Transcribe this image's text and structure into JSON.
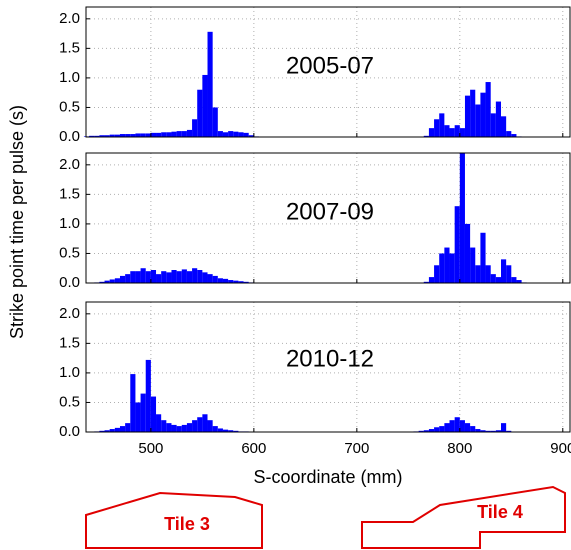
{
  "chart_data": {
    "type": "histogram",
    "xlabel": "S-coordinate (mm)",
    "ylabel": "Strike point time per pulse (s)",
    "bins": [
      435,
      440,
      445,
      450,
      455,
      460,
      465,
      470,
      475,
      480,
      485,
      490,
      495,
      500,
      505,
      510,
      515,
      520,
      525,
      530,
      535,
      540,
      545,
      550,
      555,
      560,
      565,
      570,
      575,
      580,
      585,
      590,
      595,
      600,
      605,
      610,
      615,
      620,
      625,
      630,
      635,
      640,
      645,
      650,
      655,
      660,
      665,
      670,
      675,
      680,
      685,
      690,
      695,
      700,
      705,
      710,
      715,
      720,
      725,
      730,
      735,
      740,
      745,
      750,
      755,
      760,
      765,
      770,
      775,
      780,
      785,
      790,
      795,
      800,
      805,
      810,
      815,
      820,
      825,
      830,
      835,
      840,
      845,
      850,
      855,
      860,
      865,
      870,
      875,
      880,
      885,
      890,
      895,
      900,
      905
    ],
    "series": [
      {
        "name": "2005-07",
        "color": "#0000ff",
        "values": [
          0.01,
          0.02,
          0.02,
          0.03,
          0.03,
          0.04,
          0.04,
          0.05,
          0.05,
          0.05,
          0.06,
          0.06,
          0.06,
          0.07,
          0.07,
          0.08,
          0.08,
          0.09,
          0.1,
          0.1,
          0.12,
          0.3,
          0.8,
          1.05,
          1.78,
          0.5,
          0.1,
          0.08,
          0.1,
          0.09,
          0.08,
          0.07,
          0.03,
          0.01,
          0,
          0,
          0,
          0,
          0,
          0,
          0,
          0,
          0,
          0,
          0,
          0,
          0,
          0,
          0,
          0,
          0,
          0,
          0,
          0,
          0,
          0,
          0,
          0,
          0,
          0,
          0,
          0,
          0,
          0,
          0,
          0,
          0.02,
          0.15,
          0.3,
          0.4,
          0.2,
          0.15,
          0.2,
          0.15,
          0.7,
          0.8,
          0.55,
          0.75,
          0.93,
          0.4,
          0.6,
          0.35,
          0.1,
          0.05,
          0.01,
          0,
          0,
          0,
          0,
          0,
          0,
          0,
          0,
          0
        ]
      },
      {
        "name": "2007-09",
        "color": "#0000ff",
        "values": [
          0,
          0,
          0.01,
          0.02,
          0.04,
          0.06,
          0.08,
          0.12,
          0.15,
          0.2,
          0.2,
          0.25,
          0.2,
          0.22,
          0.15,
          0.2,
          0.18,
          0.22,
          0.2,
          0.23,
          0.2,
          0.25,
          0.22,
          0.18,
          0.15,
          0.12,
          0.08,
          0.07,
          0.05,
          0.04,
          0.03,
          0.02,
          0.01,
          0,
          0,
          0,
          0,
          0,
          0,
          0,
          0,
          0,
          0,
          0,
          0,
          0,
          0,
          0,
          0,
          0,
          0,
          0,
          0,
          0,
          0,
          0,
          0,
          0,
          0,
          0,
          0,
          0,
          0,
          0,
          0,
          0,
          0.02,
          0.1,
          0.3,
          0.5,
          0.6,
          0.5,
          1.3,
          2.2,
          1.0,
          0.6,
          0.3,
          0.85,
          0.3,
          0.15,
          0.1,
          0.4,
          0.3,
          0.1,
          0.05,
          0.01,
          0,
          0,
          0,
          0,
          0,
          0,
          0,
          0
        ]
      },
      {
        "name": "2010-12",
        "color": "#0000ff",
        "values": [
          0,
          0,
          0.01,
          0.02,
          0.03,
          0.05,
          0.07,
          0.1,
          0.15,
          0.98,
          0.5,
          0.65,
          1.22,
          0.6,
          0.3,
          0.2,
          0.15,
          0.12,
          0.1,
          0.12,
          0.15,
          0.2,
          0.25,
          0.3,
          0.2,
          0.1,
          0.06,
          0.04,
          0.03,
          0.02,
          0.01,
          0.01,
          0,
          0,
          0,
          0,
          0,
          0,
          0,
          0,
          0,
          0,
          0,
          0,
          0,
          0,
          0,
          0,
          0,
          0,
          0,
          0,
          0,
          0,
          0,
          0,
          0,
          0,
          0,
          0,
          0,
          0,
          0,
          0,
          0.01,
          0.02,
          0.03,
          0.05,
          0.08,
          0.1,
          0.15,
          0.2,
          0.25,
          0.2,
          0.15,
          0.1,
          0.05,
          0.03,
          0.02,
          0.02,
          0.03,
          0.15,
          0.02,
          0,
          0,
          0,
          0,
          0,
          0,
          0,
          0,
          0,
          0,
          0
        ]
      }
    ],
    "xlim": [
      437,
      907
    ],
    "xticks": [
      500,
      600,
      700,
      800,
      900
    ],
    "ylim": [
      0,
      2.2
    ],
    "yticks": [
      {
        "value": 0,
        "label": "0.0"
      },
      {
        "value": 0.5,
        "label": "0.5"
      },
      {
        "value": 1,
        "label": "1.0"
      },
      {
        "value": 1.5,
        "label": "1.5"
      },
      {
        "value": 2,
        "label": "2.0"
      }
    ],
    "grid": true,
    "tile_labels": [
      "Tile 3",
      "Tile 4"
    ]
  }
}
